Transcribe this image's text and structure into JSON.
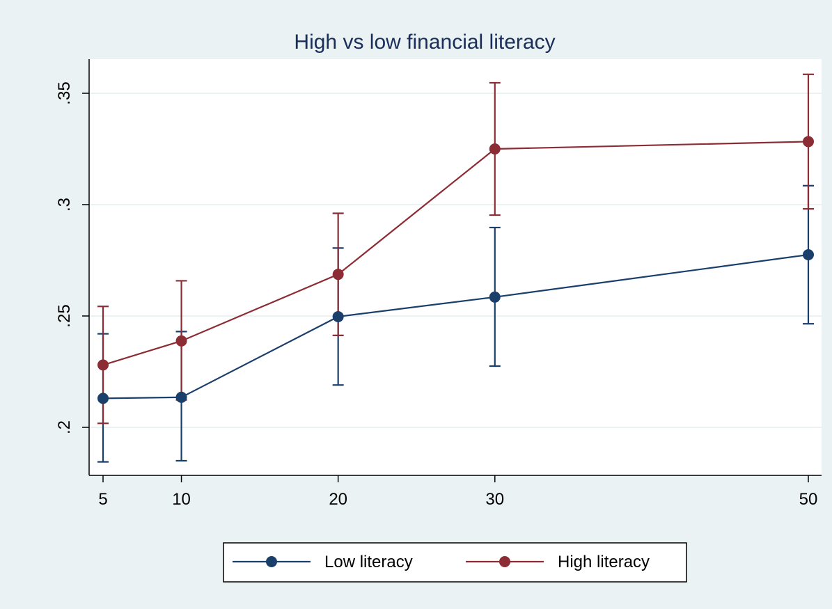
{
  "chart_data": {
    "type": "line",
    "title": "High vs low financial literacy",
    "xlabel": "",
    "ylabel": "",
    "x": [
      5,
      10,
      20,
      30,
      50
    ],
    "xlim": [
      5,
      50
    ],
    "ylim": [
      0.185,
      0.365
    ],
    "xticks": [
      5,
      10,
      20,
      30,
      50
    ],
    "xtick_labels": [
      "5",
      "10",
      "20",
      "30",
      "50"
    ],
    "yticks": [
      0.2,
      0.25,
      0.3,
      0.35
    ],
    "ytick_labels": [
      ".2",
      ".25",
      ".3",
      ".35"
    ],
    "grid": true,
    "legend_position": "bottom",
    "error_bars": true,
    "series": [
      {
        "name": "Low literacy",
        "color": "#1a3f6b",
        "values": [
          0.213,
          0.2135,
          0.2497,
          0.2585,
          0.2775
        ],
        "lower": [
          0.1845,
          0.185,
          0.219,
          0.2275,
          0.2465
        ],
        "upper": [
          0.242,
          0.243,
          0.2805,
          0.2897,
          0.3085
        ]
      },
      {
        "name": "High literacy",
        "color": "#8c2d35",
        "values": [
          0.228,
          0.2388,
          0.2687,
          0.325,
          0.3283
        ],
        "lower": [
          0.2018,
          0.2123,
          0.2413,
          0.2953,
          0.2981
        ],
        "upper": [
          0.2543,
          0.2658,
          0.2961,
          0.3547,
          0.3585
        ]
      }
    ]
  }
}
